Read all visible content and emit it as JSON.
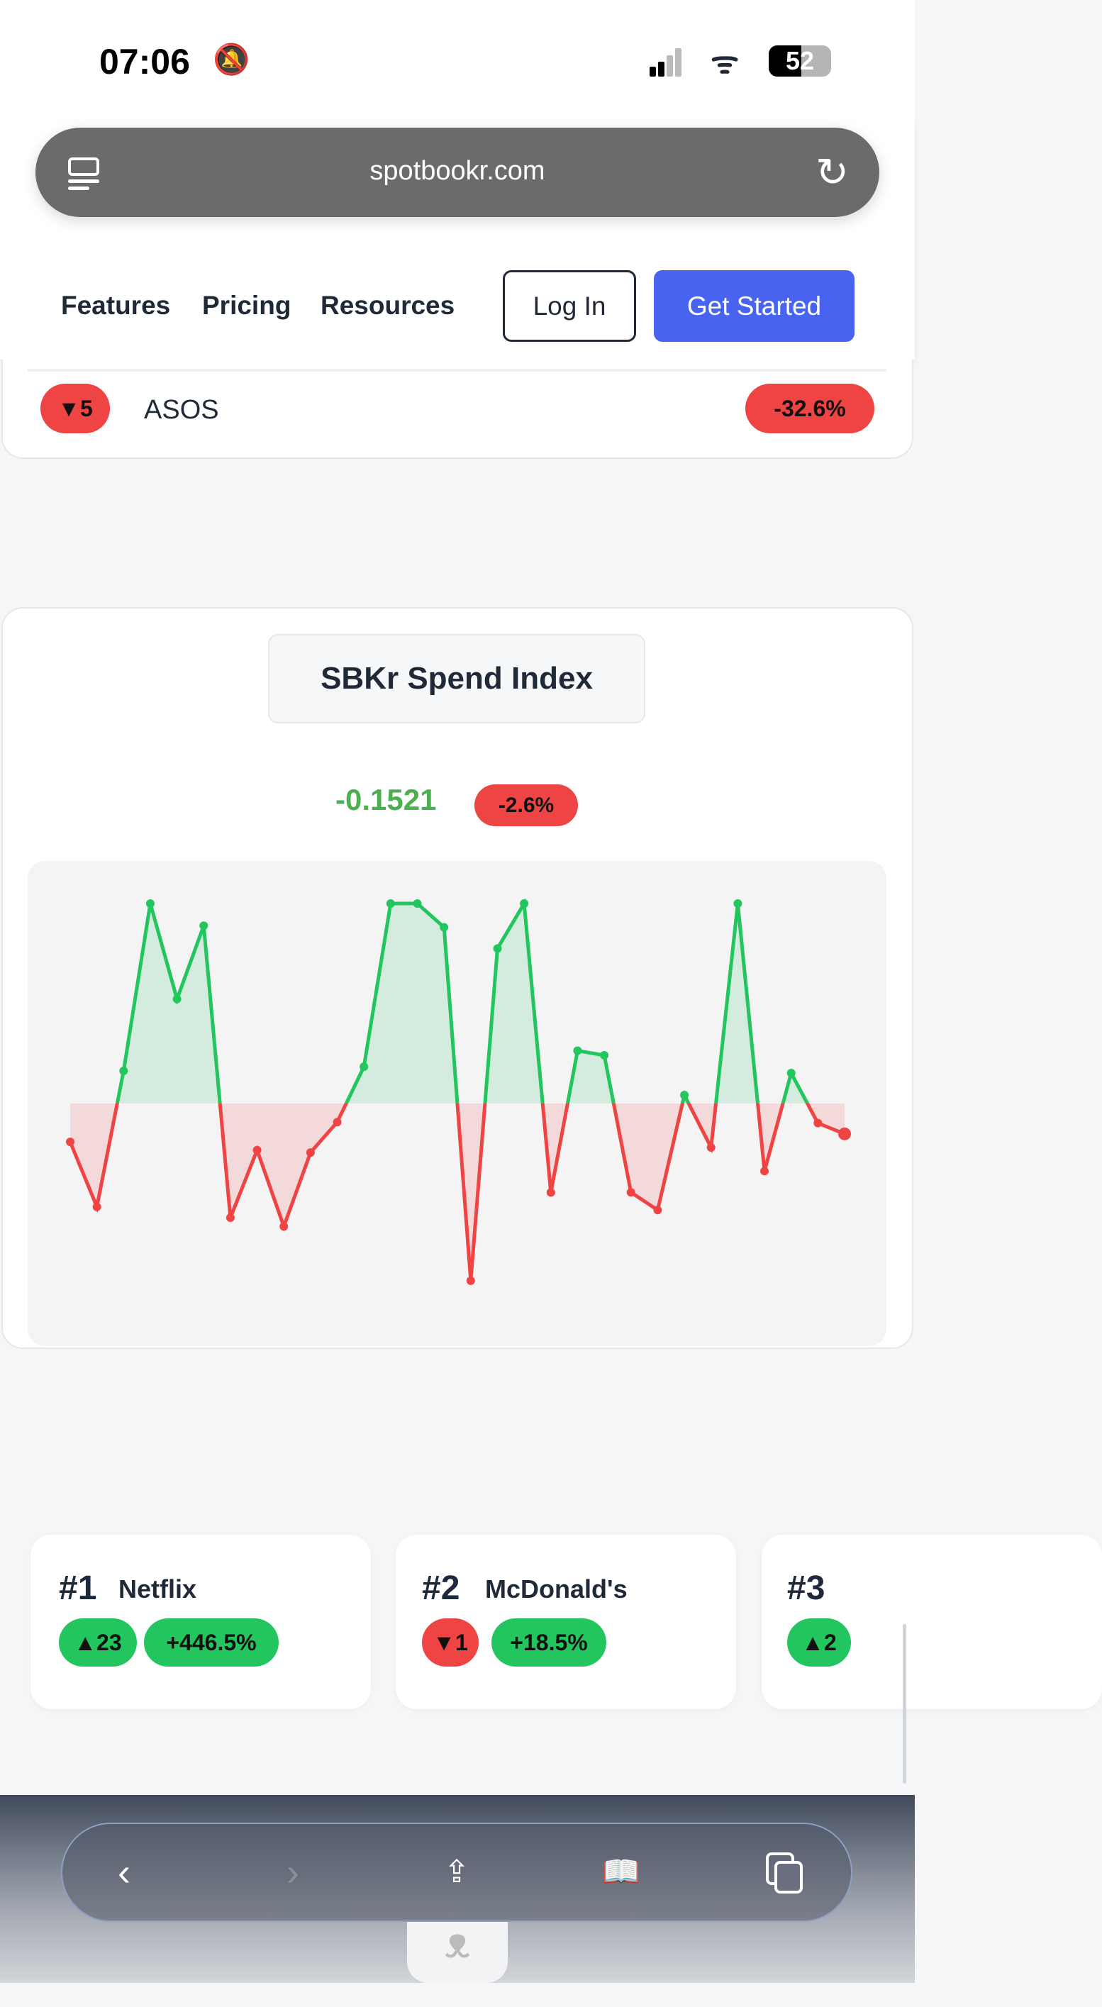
{
  "status": {
    "time": "07:06",
    "battery": "52",
    "silent_icon": "bell-slash-icon"
  },
  "browser": {
    "url": "spotbookr.com"
  },
  "nav": {
    "links": [
      "Features",
      "Pricing",
      "Resources"
    ],
    "login": "Log In",
    "get_started": "Get Started"
  },
  "top_row": {
    "rank_change": "▼5",
    "name": "ASOS",
    "change": "-32.6%"
  },
  "index": {
    "title": "SBKr Spend Index",
    "value": "-0.1521",
    "change": "-2.6%"
  },
  "colors": {
    "up": "#22c55e",
    "down": "#ef4444",
    "accent": "#4763ef"
  },
  "chart_data": {
    "type": "area",
    "baseline": 0,
    "ylim": [
      -1.22,
      1.22
    ],
    "grid": false,
    "values": [
      -0.192,
      -0.517,
      0.163,
      1.0,
      0.522,
      0.889,
      -0.571,
      -0.233,
      -0.615,
      -0.245,
      -0.093,
      0.184,
      1.0,
      1.0,
      0.881,
      -0.886,
      0.775,
      1.0,
      -0.445,
      0.264,
      0.241,
      -0.444,
      -0.533,
      0.042,
      -0.22,
      1.0,
      -0.338,
      0.152,
      -0.098,
      -0.152
    ]
  },
  "rankings": [
    {
      "rank": "#1",
      "name": "Netflix",
      "rank_change": "▲23",
      "change": "+446.5%"
    },
    {
      "rank": "#2",
      "name": "McDonald's",
      "rank_change": "▼1",
      "change": "+18.5%"
    },
    {
      "rank": "#3",
      "name": "",
      "rank_change": "▲2",
      "change": ""
    }
  ]
}
